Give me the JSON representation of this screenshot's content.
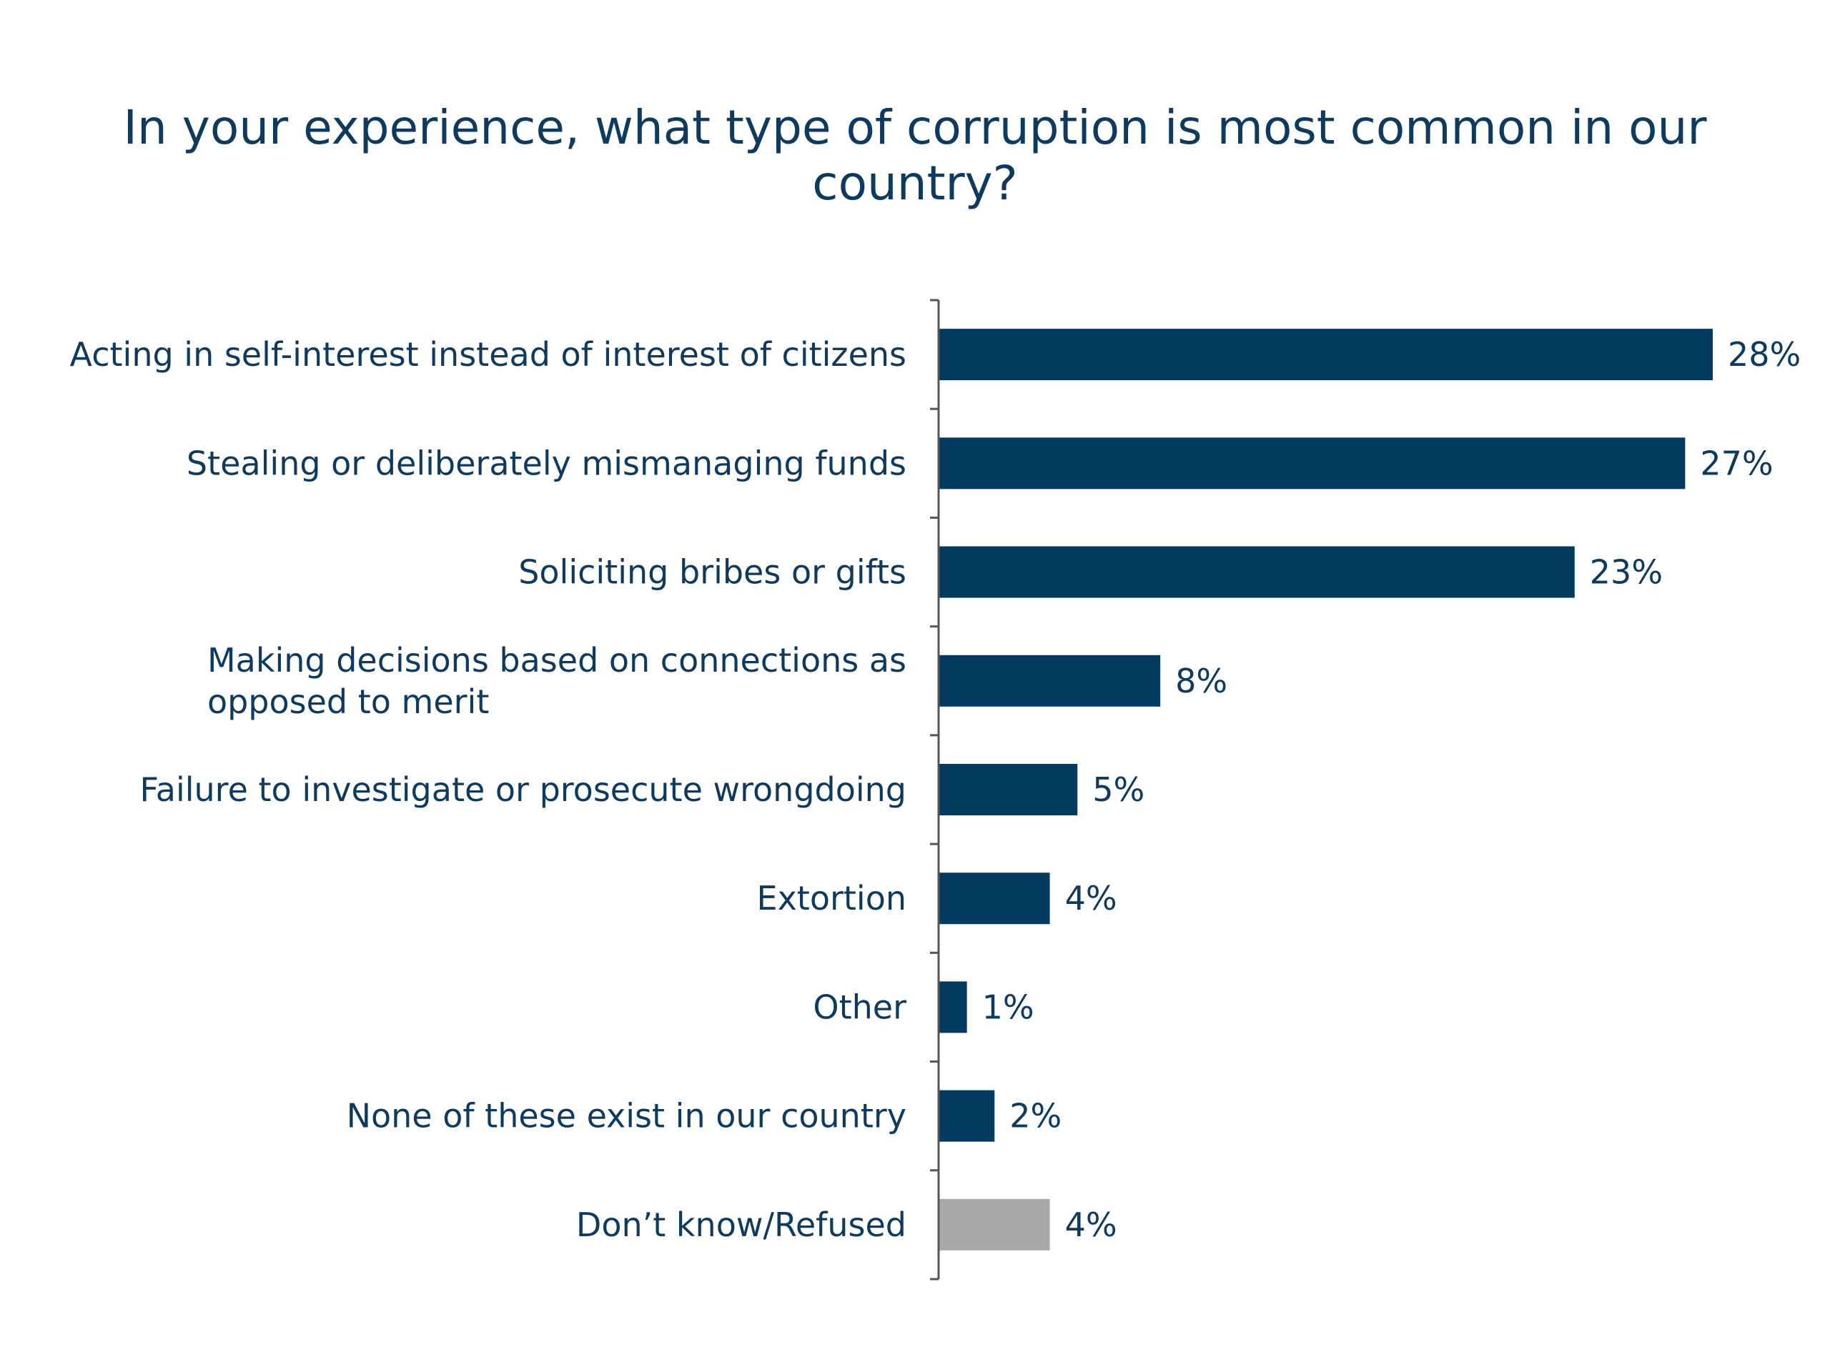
{
  "chart_data": {
    "type": "bar",
    "orientation": "horizontal",
    "title": "In your experience, what type of corruption is most common in our country?",
    "categories": [
      "Acting in self-interest instead of interest of citizens",
      "Stealing or deliberately mismanaging funds",
      "Soliciting bribes or gifts",
      "Making decisions based on connections as opposed to merit",
      "Failure to investigate or prosecute wrongdoing",
      "Extortion",
      "Other",
      "None of these exist in our country",
      "Don’t know/Refused"
    ],
    "values": [
      28,
      27,
      23,
      8,
      5,
      4,
      1,
      2,
      4
    ],
    "value_labels": [
      "28%",
      "27%",
      "23%",
      "8%",
      "5%",
      "4%",
      "1%",
      "2%",
      "4%"
    ],
    "bar_colors": [
      "#033a5f",
      "#033a5f",
      "#033a5f",
      "#033a5f",
      "#033a5f",
      "#033a5f",
      "#033a5f",
      "#033a5f",
      "#a8a8a8"
    ],
    "xlim": [
      0,
      28
    ],
    "xlabel": "",
    "ylabel": "",
    "grid": false,
    "legend": false
  },
  "colors": {
    "text": "#0d3a5e",
    "bar": "#033a5f",
    "bar_muted": "#a8a8a8",
    "axis": "#555555"
  }
}
